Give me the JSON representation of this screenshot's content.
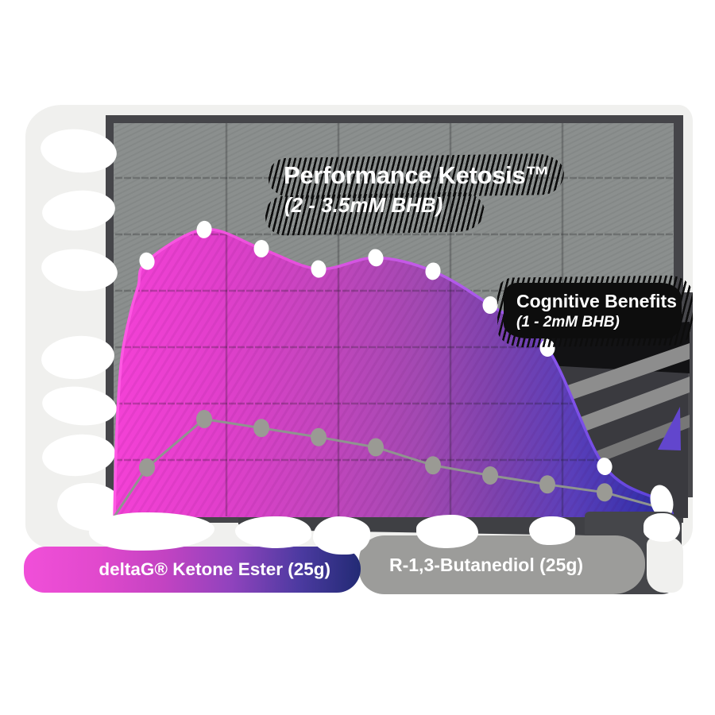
{
  "chart_data": {
    "type": "area",
    "title": "Performance Ketosis™",
    "x": [
      0,
      1,
      2,
      3,
      4,
      5,
      6,
      7,
      8,
      9
    ],
    "x_axis": {
      "tick_labels_visible": false
    },
    "y_axis": {
      "unit": "mM BHB",
      "min": 0,
      "max": 3.5,
      "gridline_step": 0.5,
      "tick_labels_visible": false
    },
    "grid": true,
    "zones": [
      {
        "label": "Performance Ketosis™",
        "range_text": "(2 - 3.5mM BHB)",
        "range_mM": [
          2,
          3.5
        ]
      },
      {
        "label": "Cognitive Benefits",
        "range_text": "(1 - 2mM BHB)",
        "range_mM": [
          1,
          2
        ]
      }
    ],
    "series": [
      {
        "name": "deltaG® Ketone Ester (25g)",
        "style": "area-gradient",
        "marker": "white-dot",
        "start_mM": 0,
        "values_mM": [
          2.27,
          2.55,
          2.38,
          2.2,
          2.3,
          2.18,
          1.88,
          1.5,
          0.45,
          0.14
        ]
      },
      {
        "name": "R-1,3-Butanediol (25g)",
        "style": "gray-line",
        "marker": "gray-dot",
        "start_mM": 0,
        "values_mM": [
          0.44,
          0.87,
          0.79,
          0.71,
          0.62,
          0.46,
          0.37,
          0.29,
          0.22,
          0.08
        ]
      }
    ],
    "legend_position": "bottom"
  },
  "legend": {
    "item1": "deltaG® Ketone Ester (25g)",
    "item2": "R-1,3-Butanediol (25g)"
  },
  "colors": {
    "page_bg": "#ffffff",
    "canvas": "#f0f0ee",
    "plot_bg": "#8b8f8e",
    "frame": "#454549",
    "grid": "rgba(25,22,28,0.25)",
    "dark_shadow_region": "#3a3a3f",
    "area_gradient": [
      "#f441d6",
      "#e23fcc",
      "#c246bd",
      "#a249b2",
      "#7e43ae",
      "#5a3fba",
      "#3b33ad",
      "#2a2c95"
    ],
    "area_edge": [
      "#ff58e3",
      "#ea4fdc",
      "#c05ae8",
      "#9158ee",
      "#6c4ae2",
      "#5540d6"
    ],
    "gray_line": "#8f948f",
    "gray_marker": "#9a9a94",
    "white_marker": "#ffffff",
    "label_shadow": "#0d0d0d",
    "legend2_bg": "#9c9c9a",
    "legend_shadow": "#45464a"
  }
}
